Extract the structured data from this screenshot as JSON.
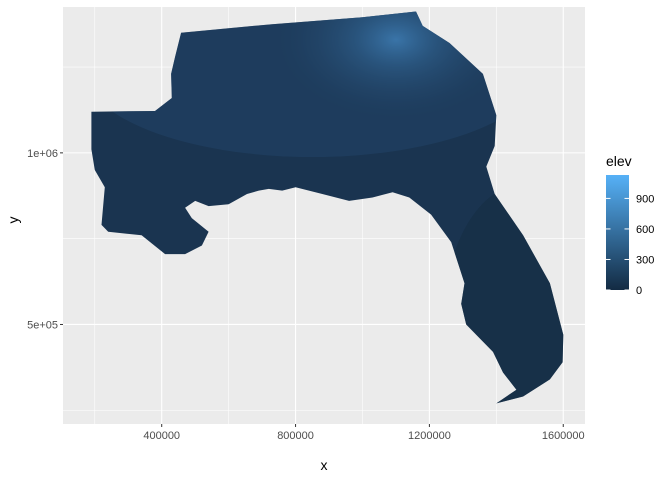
{
  "chart_data": {
    "type": "heatmap",
    "title": "",
    "xlabel": "x",
    "ylabel": "y",
    "xlim": [
      105000,
      1665000
    ],
    "ylim": [
      210000,
      1425000
    ],
    "x_ticks": [
      400000,
      800000,
      1200000,
      1600000
    ],
    "x_tick_labels": [
      "400000",
      "800000",
      "1200000",
      "1600000"
    ],
    "y_ticks": [
      500000,
      1000000
    ],
    "y_tick_labels": [
      "5e+05",
      "1e+06"
    ],
    "fill_variable": "elev",
    "legend": {
      "title": "elev",
      "position": "right",
      "breaks": [
        0,
        300,
        600,
        900
      ],
      "labels": [
        "0",
        "300",
        "600",
        "900"
      ],
      "range": [
        0,
        1130
      ],
      "low_color": "#132B43",
      "high_color": "#56B1F7"
    },
    "panel_background": "#EBEBEB",
    "grid": true,
    "region_outline": [
      [
        190000,
        1120000
      ],
      [
        380000,
        1122000
      ],
      [
        430000,
        1160000
      ],
      [
        428000,
        1230000
      ],
      [
        440000,
        1280000
      ],
      [
        458000,
        1350000
      ],
      [
        730000,
        1375000
      ],
      [
        1000000,
        1395000
      ],
      [
        1160000,
        1412000
      ],
      [
        1180000,
        1370000
      ],
      [
        1260000,
        1320000
      ],
      [
        1360000,
        1230000
      ],
      [
        1400000,
        1110000
      ],
      [
        1395000,
        1020000
      ],
      [
        1370000,
        960000
      ],
      [
        1395000,
        880000
      ],
      [
        1480000,
        760000
      ],
      [
        1560000,
        620000
      ],
      [
        1600000,
        470000
      ],
      [
        1598000,
        390000
      ],
      [
        1560000,
        340000
      ],
      [
        1480000,
        290000
      ],
      [
        1400000,
        270000
      ],
      [
        1460000,
        310000
      ],
      [
        1420000,
        360000
      ],
      [
        1390000,
        420000
      ],
      [
        1310000,
        500000
      ],
      [
        1295000,
        560000
      ],
      [
        1305000,
        620000
      ],
      [
        1265000,
        740000
      ],
      [
        1205000,
        820000
      ],
      [
        1140000,
        870000
      ],
      [
        1090000,
        885000
      ],
      [
        1030000,
        870000
      ],
      [
        960000,
        860000
      ],
      [
        880000,
        880000
      ],
      [
        800000,
        900000
      ],
      [
        760000,
        890000
      ],
      [
        720000,
        895000
      ],
      [
        690000,
        890000
      ],
      [
        655000,
        880000
      ],
      [
        600000,
        850000
      ],
      [
        540000,
        845000
      ],
      [
        500000,
        860000
      ],
      [
        470000,
        840000
      ],
      [
        490000,
        810000
      ],
      [
        540000,
        770000
      ],
      [
        520000,
        730000
      ],
      [
        470000,
        705000
      ],
      [
        410000,
        705000
      ],
      [
        340000,
        760000
      ],
      [
        240000,
        770000
      ],
      [
        220000,
        790000
      ],
      [
        230000,
        900000
      ],
      [
        200000,
        950000
      ],
      [
        190000,
        1010000
      ],
      [
        190000,
        1120000
      ]
    ],
    "highland_area": {
      "center": [
        1100000,
        1330000
      ],
      "max_elev": 1130
    }
  }
}
